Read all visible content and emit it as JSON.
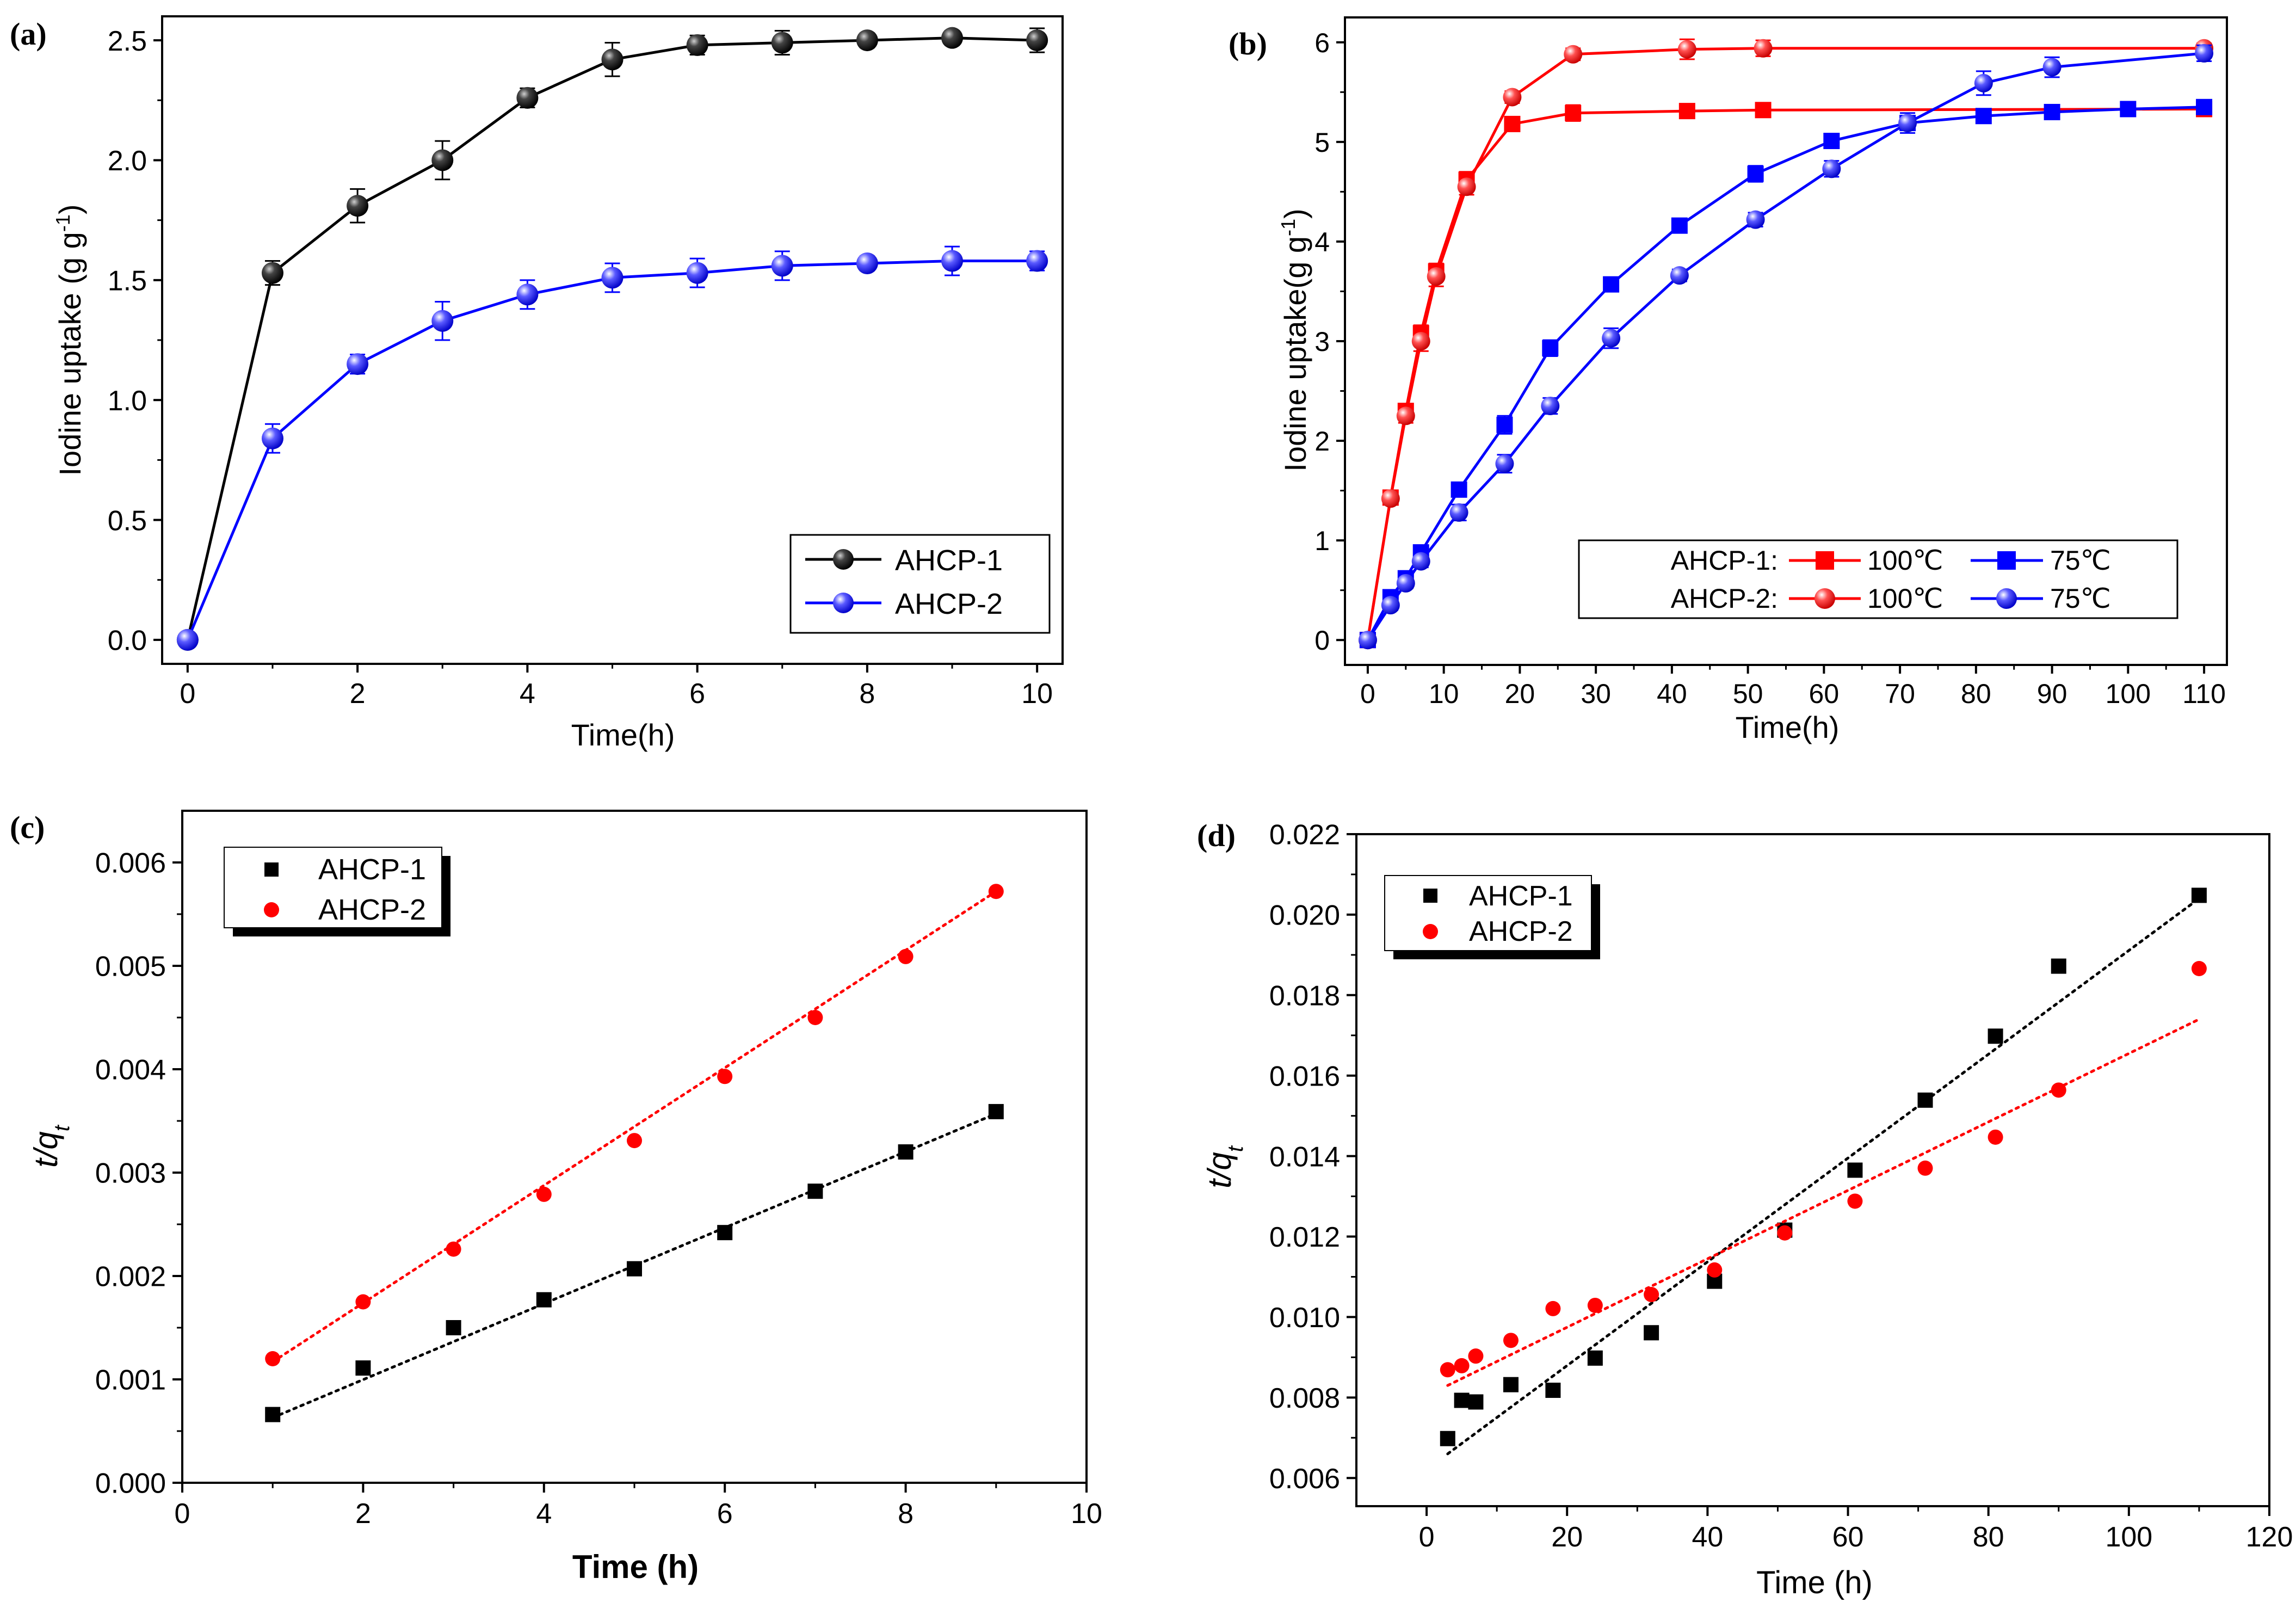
{
  "chart_data": [
    {
      "panel": "(a)",
      "type": "line",
      "xlabel": "Time(h)",
      "ylabel": "Iodine uptake (g g",
      "ylabel_sup": "-1",
      "ylabel_close": ")",
      "xlim": [
        -0.3,
        10.3
      ],
      "ylim": [
        -0.1,
        2.6
      ],
      "xticks": [
        "0",
        "2",
        "4",
        "6",
        "8",
        "10"
      ],
      "yticks": [
        "0.0",
        "0.5",
        "1.0",
        "1.5",
        "2.0",
        "2.5"
      ],
      "legend_pos": "bottom-right",
      "series": [
        {
          "name": "AHCP-1",
          "color": "#000000",
          "marker": "sphere",
          "x": [
            0,
            1,
            2,
            3,
            4,
            5,
            6,
            7,
            8,
            9,
            10
          ],
          "y": [
            0,
            1.53,
            1.81,
            2.0,
            2.26,
            2.42,
            2.48,
            2.49,
            2.5,
            2.51,
            2.5
          ],
          "err": [
            0.02,
            0.05,
            0.07,
            0.08,
            0.04,
            0.07,
            0.04,
            0.05,
            0.03,
            0.03,
            0.05
          ]
        },
        {
          "name": "AHCP-2",
          "color": "#0000ff",
          "marker": "sphere",
          "x": [
            0,
            1,
            2,
            3,
            4,
            5,
            6,
            7,
            8,
            9,
            10
          ],
          "y": [
            0,
            0.84,
            1.15,
            1.33,
            1.44,
            1.51,
            1.53,
            1.56,
            1.57,
            1.58,
            1.58
          ],
          "err": [
            0.02,
            0.06,
            0.04,
            0.08,
            0.06,
            0.06,
            0.06,
            0.06,
            0.03,
            0.06,
            0.04
          ]
        }
      ]
    },
    {
      "panel": "(b)",
      "type": "line",
      "xlabel": "Time(h)",
      "ylabel": "Iodine uptake(g g",
      "ylabel_sup": "-1",
      "ylabel_close": ")",
      "xlim": [
        -3,
        113
      ],
      "ylim": [
        -0.25,
        6.25
      ],
      "xticks": [
        "0",
        "10",
        "20",
        "30",
        "40",
        "50",
        "60",
        "70",
        "80",
        "90",
        "100",
        "110"
      ],
      "yticks": [
        "0",
        "1",
        "2",
        "3",
        "4",
        "5",
        "6"
      ],
      "legend_pos": "bottom-right",
      "legend_groups": [
        "AHCP-1:",
        "AHCP-2:"
      ],
      "legend_temps": [
        "100℃",
        "75℃"
      ],
      "series": [
        {
          "name": "AHCP-1 100℃",
          "color": "#ff0000",
          "marker": "square",
          "x": [
            0,
            3,
            5,
            7,
            9,
            13,
            19,
            27,
            42,
            52,
            110
          ],
          "y": [
            0,
            1.43,
            2.3,
            3.08,
            3.7,
            4.62,
            5.18,
            5.29,
            5.31,
            5.32,
            5.33
          ],
          "err": [
            0.02,
            0.05,
            0.06,
            0.08,
            0.08,
            0.08,
            0.06,
            0.08,
            0.07,
            0.07,
            0.05
          ]
        },
        {
          "name": "AHCP-2 100℃",
          "color": "#ff0000",
          "marker": "sphere",
          "x": [
            0,
            3,
            5,
            7,
            9,
            13,
            19,
            27,
            42,
            52,
            110
          ],
          "y": [
            0,
            1.42,
            2.25,
            3.0,
            3.65,
            4.55,
            5.45,
            5.88,
            5.93,
            5.94,
            5.94
          ],
          "err": [
            0.02,
            0.05,
            0.07,
            0.1,
            0.1,
            0.08,
            0.06,
            0.06,
            0.1,
            0.08,
            0.05
          ]
        },
        {
          "name": "AHCP-1 75℃",
          "color": "#0000ff",
          "marker": "square",
          "x": [
            0,
            3,
            5,
            7,
            12,
            18,
            24,
            32,
            41,
            51,
            61,
            71,
            81,
            90,
            100,
            110
          ],
          "y": [
            0,
            0.43,
            0.62,
            0.88,
            1.51,
            2.16,
            2.93,
            3.57,
            4.16,
            4.68,
            5.01,
            5.19,
            5.26,
            5.3,
            5.33,
            5.35
          ],
          "err": [
            0.02,
            0.05,
            0.05,
            0.06,
            0.07,
            0.09,
            0.08,
            0.06,
            0.06,
            0.08,
            0.05,
            0.05,
            0.04,
            0.04,
            0.04,
            0.04
          ]
        },
        {
          "name": "AHCP-2 75℃",
          "color": "#0000ff",
          "marker": "sphere",
          "x": [
            0,
            3,
            5,
            7,
            12,
            18,
            24,
            32,
            41,
            51,
            61,
            71,
            81,
            90,
            110
          ],
          "y": [
            0,
            0.35,
            0.57,
            0.79,
            1.28,
            1.77,
            2.35,
            3.03,
            3.66,
            4.22,
            4.73,
            5.19,
            5.59,
            5.75,
            5.89
          ],
          "err": [
            0.02,
            0.05,
            0.05,
            0.06,
            0.08,
            0.09,
            0.08,
            0.1,
            0.06,
            0.07,
            0.08,
            0.1,
            0.12,
            0.1,
            0.08
          ]
        }
      ]
    },
    {
      "panel": "(c)",
      "type": "scatter",
      "xlabel": "Time (h)",
      "ylabel": "t/q",
      "ylabel_sub": "t",
      "xlim": [
        0,
        10
      ],
      "ylim": [
        0,
        0.0065
      ],
      "xticks": [
        "0",
        "2",
        "4",
        "6",
        "8",
        "10"
      ],
      "yticks": [
        "0.000",
        "0.001",
        "0.002",
        "0.003",
        "0.004",
        "0.005",
        "0.006"
      ],
      "legend_pos": "top-left",
      "series": [
        {
          "name": "AHCP-1",
          "color": "#000000",
          "marker": "square",
          "x": [
            1,
            2,
            3,
            4,
            5,
            6,
            7,
            8,
            9
          ],
          "y": [
            0.00066,
            0.00111,
            0.0015,
            0.00177,
            0.00207,
            0.00242,
            0.00282,
            0.0032,
            0.00359
          ],
          "fit": [
            [
              1,
              0.00063
            ],
            [
              9,
              0.00357
            ]
          ]
        },
        {
          "name": "AHCP-2",
          "color": "#ff0000",
          "marker": "circle",
          "x": [
            1,
            2,
            3,
            4,
            5,
            6,
            7,
            8,
            9
          ],
          "y": [
            0.0012,
            0.00175,
            0.00226,
            0.00279,
            0.00331,
            0.00393,
            0.0045,
            0.00509,
            0.00572
          ],
          "fit": [
            [
              1,
              0.00117
            ],
            [
              9,
              0.00572
            ]
          ]
        }
      ]
    },
    {
      "panel": "(d)",
      "type": "scatter",
      "xlabel": "Time (h)",
      "ylabel": "t/q",
      "ylabel_sub": "t",
      "xlim": [
        -10,
        120
      ],
      "ylim": [
        0.0053,
        0.022
      ],
      "xticks": [
        "0",
        "20",
        "40",
        "60",
        "80",
        "100",
        "120"
      ],
      "yticks": [
        "0.006",
        "0.008",
        "0.010",
        "0.012",
        "0.014",
        "0.016",
        "0.018",
        "0.020",
        "0.022"
      ],
      "legend_pos": "top-left",
      "series": [
        {
          "name": "AHCP-1",
          "color": "#000000",
          "marker": "square",
          "x": [
            3,
            5,
            7,
            12,
            18,
            24,
            32,
            41,
            51,
            61,
            71,
            81,
            90,
            110
          ],
          "y": [
            0.00698,
            0.00793,
            0.00789,
            0.00832,
            0.00818,
            0.00898,
            0.00961,
            0.01089,
            0.01216,
            0.01365,
            0.01539,
            0.01698,
            0.01872,
            0.02048
          ],
          "fit": [
            [
              3,
              0.0066
            ],
            [
              110,
              0.0204
            ]
          ]
        },
        {
          "name": "AHCP-2",
          "color": "#ff0000",
          "marker": "circle",
          "x": [
            3,
            5,
            7,
            12,
            18,
            24,
            32,
            41,
            51,
            61,
            71,
            81,
            90,
            110
          ],
          "y": [
            0.00869,
            0.00879,
            0.00903,
            0.00942,
            0.01021,
            0.01029,
            0.01056,
            0.01117,
            0.01209,
            0.01288,
            0.0137,
            0.01447,
            0.01564,
            0.01866
          ],
          "fit": [
            [
              3,
              0.0083
            ],
            [
              110,
              0.0174
            ]
          ]
        }
      ]
    }
  ]
}
